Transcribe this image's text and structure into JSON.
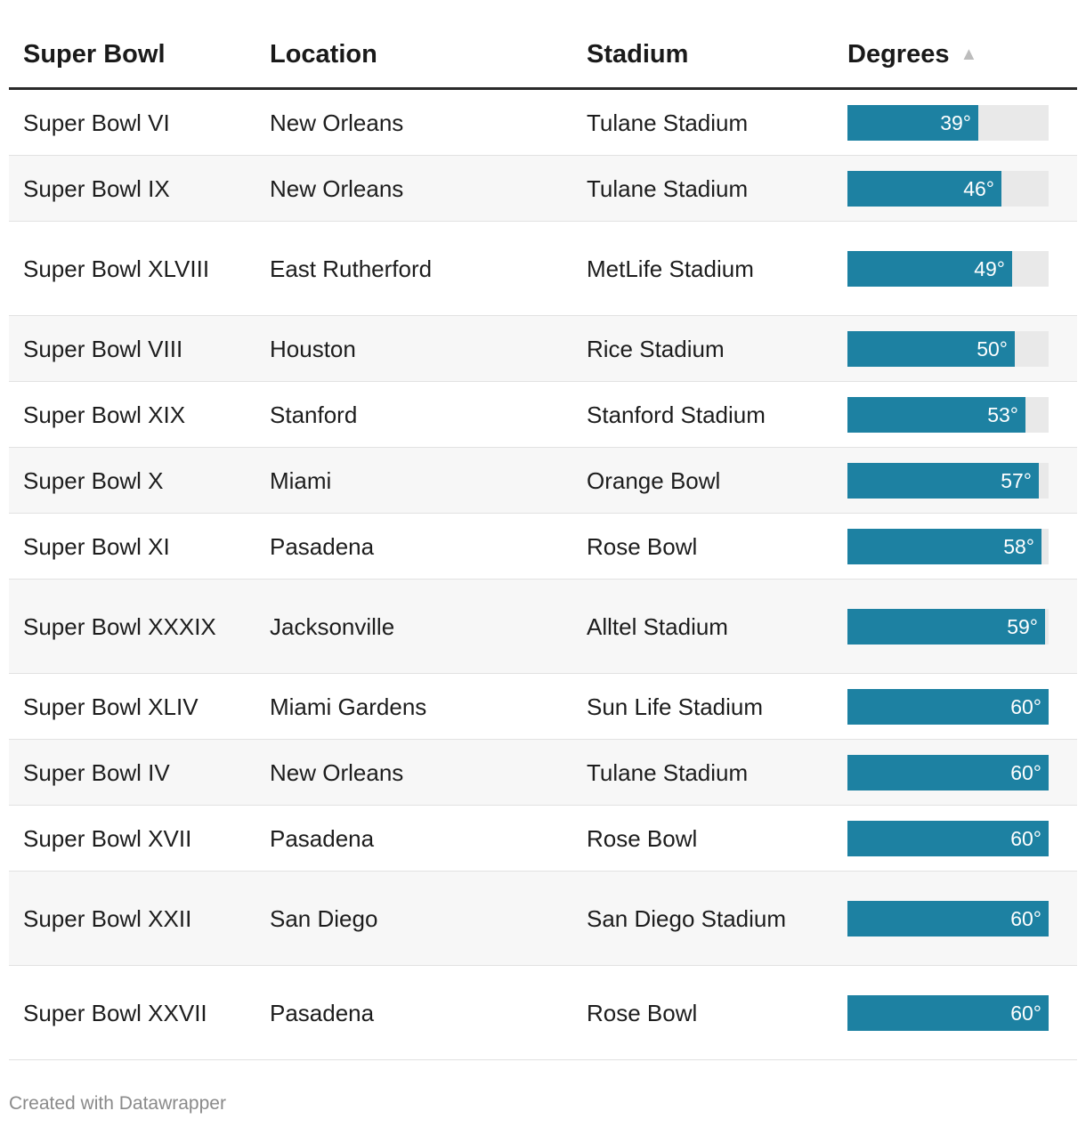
{
  "chart_data": {
    "type": "table",
    "columns": [
      "Super Bowl",
      "Location",
      "Stadium",
      "Degrees"
    ],
    "sorted_column": "Degrees",
    "sort_direction": "ascending",
    "bar_range": [
      0,
      60
    ],
    "unit_suffix": "°",
    "rows": [
      {
        "bowl": "Super Bowl VI",
        "location": "New Orleans",
        "stadium": "Tulane Stadium",
        "degrees": 39
      },
      {
        "bowl": "Super Bowl IX",
        "location": "New Orleans",
        "stadium": "Tulane Stadium",
        "degrees": 46
      },
      {
        "bowl": "Super Bowl XLVIII",
        "location": "East Rutherford",
        "stadium": "MetLife Stadium",
        "degrees": 49
      },
      {
        "bowl": "Super Bowl VIII",
        "location": "Houston",
        "stadium": "Rice Stadium",
        "degrees": 50
      },
      {
        "bowl": "Super Bowl XIX",
        "location": "Stanford",
        "stadium": "Stanford Stadium",
        "degrees": 53
      },
      {
        "bowl": "Super Bowl X",
        "location": "Miami",
        "stadium": "Orange Bowl",
        "degrees": 57
      },
      {
        "bowl": "Super Bowl XI",
        "location": "Pasadena",
        "stadium": "Rose Bowl",
        "degrees": 58
      },
      {
        "bowl": "Super Bowl XXXIX",
        "location": "Jacksonville",
        "stadium": "Alltel Stadium",
        "degrees": 59
      },
      {
        "bowl": "Super Bowl XLIV",
        "location": "Miami Gardens",
        "stadium": "Sun Life Stadium",
        "degrees": 60
      },
      {
        "bowl": "Super Bowl IV",
        "location": "New Orleans",
        "stadium": "Tulane Stadium",
        "degrees": 60
      },
      {
        "bowl": "Super Bowl XVII",
        "location": "Pasadena",
        "stadium": "Rose Bowl",
        "degrees": 60
      },
      {
        "bowl": "Super Bowl XXII",
        "location": "San Diego",
        "stadium": "San Diego Stadium",
        "degrees": 60
      },
      {
        "bowl": "Super Bowl XXVII",
        "location": "Pasadena",
        "stadium": "Rose Bowl",
        "degrees": 60
      }
    ]
  },
  "colors": {
    "bar": "#1d81a2",
    "bar_track": "#e9e9e9",
    "row_alt": "#f7f7f7"
  },
  "header": {
    "sort_icon": "sort-ascending-icon",
    "sort_glyph": "▲"
  },
  "footer": {
    "credit": "Created with Datawrapper"
  }
}
